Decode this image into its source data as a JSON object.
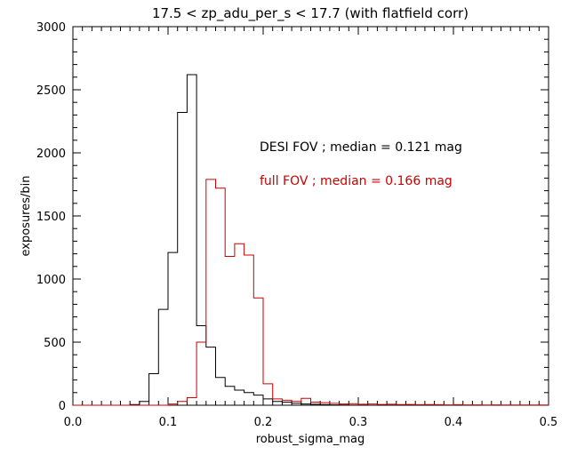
{
  "chart_data": {
    "type": "histogram",
    "title": "17.5 < zp_adu_per_s < 17.7 (with flatfield corr)",
    "xlabel": "robust_sigma_mag",
    "ylabel": "exposures/bin",
    "xlim": [
      0.0,
      0.5
    ],
    "ylim": [
      0,
      3000
    ],
    "x_ticks": [
      0.0,
      0.1,
      0.2,
      0.3,
      0.4,
      0.5
    ],
    "x_tick_labels": [
      "0.0",
      "0.1",
      "0.2",
      "0.3",
      "0.4",
      "0.5"
    ],
    "y_ticks": [
      0,
      500,
      1000,
      1500,
      2000,
      2500,
      3000
    ],
    "y_tick_labels": [
      "0",
      "500",
      "1000",
      "1500",
      "2000",
      "2500",
      "3000"
    ],
    "bin_width": 0.01,
    "annotations": [
      {
        "text": "DESI FOV ; median = 0.121 mag",
        "color": "#000000"
      },
      {
        "text": "full FOV ; median = 0.166 mag",
        "color": "#cc0000"
      }
    ],
    "series": [
      {
        "color": "#000000",
        "bin_starts": [
          0.06,
          0.07,
          0.08,
          0.09,
          0.1,
          0.11,
          0.12,
          0.13,
          0.14,
          0.15,
          0.16,
          0.17,
          0.18,
          0.19,
          0.2,
          0.21,
          0.22,
          0.23,
          0.24,
          0.25,
          0.26,
          0.27,
          0.28,
          0.29
        ],
        "values": [
          5,
          30,
          250,
          760,
          1210,
          2320,
          2620,
          630,
          460,
          220,
          150,
          120,
          100,
          80,
          50,
          30,
          25,
          15,
          10,
          8,
          5,
          3,
          2,
          1
        ]
      },
      {
        "color": "#cc0000",
        "bin_starts": [
          0.1,
          0.11,
          0.12,
          0.13,
          0.14,
          0.15,
          0.16,
          0.17,
          0.18,
          0.19,
          0.2,
          0.21,
          0.22,
          0.23,
          0.24,
          0.25,
          0.26,
          0.27,
          0.28,
          0.29,
          0.3,
          0.31,
          0.32,
          0.33,
          0.34,
          0.35,
          0.36,
          0.37,
          0.38,
          0.39,
          0.4,
          0.41,
          0.42,
          0.43,
          0.44,
          0.45,
          0.46,
          0.47,
          0.48,
          0.49
        ],
        "values": [
          10,
          30,
          60,
          500,
          1790,
          1720,
          1180,
          1280,
          1190,
          850,
          170,
          50,
          40,
          30,
          55,
          25,
          20,
          15,
          10,
          12,
          8,
          10,
          6,
          8,
          5,
          6,
          4,
          5,
          4,
          3,
          4,
          3,
          3,
          2,
          3,
          2,
          2,
          2,
          2,
          2
        ]
      }
    ]
  }
}
